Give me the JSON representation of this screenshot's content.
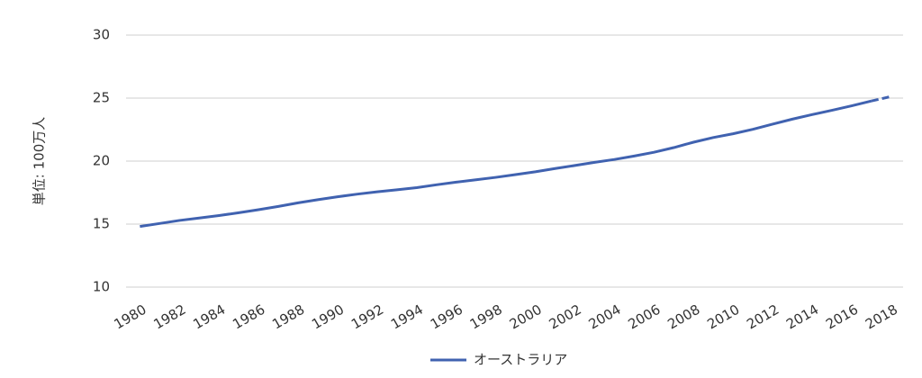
{
  "chart_data": {
    "type": "line",
    "y_label": "単位: 100万人",
    "x": [
      1980,
      1981,
      1982,
      1983,
      1984,
      1985,
      1986,
      1987,
      1988,
      1989,
      1990,
      1991,
      1992,
      1993,
      1994,
      1995,
      1996,
      1997,
      1998,
      1999,
      2000,
      2001,
      2002,
      2003,
      2004,
      2005,
      2006,
      2007,
      2008,
      2009,
      2010,
      2011,
      2012,
      2013,
      2014,
      2015,
      2016,
      2017,
      2018
    ],
    "series": [
      {
        "name": "オーストラリア",
        "color": "#4062b0",
        "values": [
          14.81,
          15.05,
          15.29,
          15.48,
          15.68,
          15.9,
          16.14,
          16.4,
          16.69,
          16.94,
          17.17,
          17.38,
          17.56,
          17.72,
          17.89,
          18.12,
          18.33,
          18.52,
          18.71,
          18.93,
          19.15,
          19.41,
          19.65,
          19.9,
          20.13,
          20.4,
          20.7,
          21.07,
          21.5,
          21.87,
          22.17,
          22.52,
          22.93,
          23.33,
          23.69,
          24.03,
          24.39,
          24.77,
          25.13
        ]
      }
    ],
    "dashed_from_x": 2017,
    "xlim": [
      1979.3,
      2018.6
    ],
    "xticks": [
      1980,
      1982,
      1984,
      1986,
      1988,
      1990,
      1992,
      1994,
      1996,
      1998,
      2000,
      2002,
      2004,
      2006,
      2008,
      2010,
      2012,
      2014,
      2016,
      2018
    ],
    "ylim": [
      10,
      30
    ],
    "yticks": [
      10,
      15,
      20,
      25,
      30
    ],
    "grid": true,
    "legend": "bottom"
  }
}
